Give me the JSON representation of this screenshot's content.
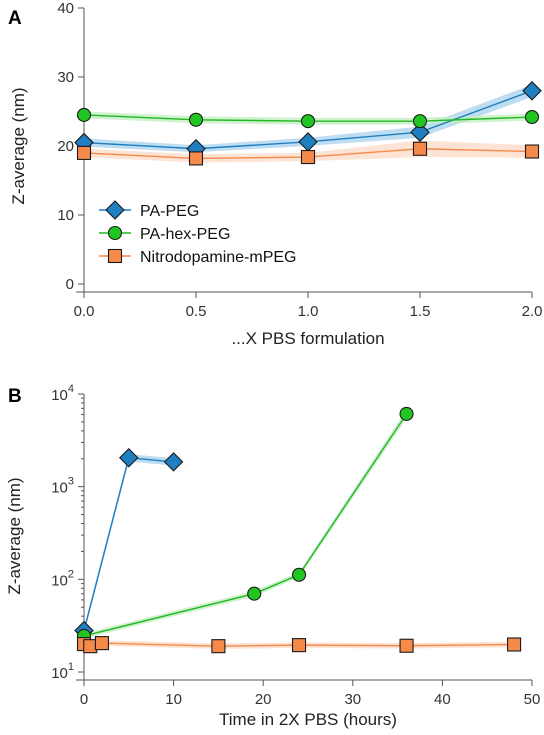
{
  "colors": {
    "PA-PEG": {
      "fill": "#1f7fc1",
      "line": "#1f7fc1",
      "band": "#a9d2ee"
    },
    "PA-hex-PEG": {
      "fill": "#22c622",
      "line": "#22b822",
      "band": "#bfeebf"
    },
    "Nitrodopamine-mPEG": {
      "fill": "#f58a4b",
      "line": "#f58a4b",
      "band": "#fcd9c4"
    },
    "axis": "#555555"
  },
  "chart_data": [
    {
      "panel_label": "A",
      "type": "line",
      "xlabel": "...X PBS formulation",
      "ylabel": "Z-average (nm)",
      "xlim": [
        0,
        2.0
      ],
      "ylim": [
        0,
        40
      ],
      "yscale": "linear",
      "xticks": [
        0.0,
        0.5,
        1.0,
        1.5,
        2.0
      ],
      "xtick_labels": [
        "0.0",
        "0.5",
        "1.0",
        "1.5",
        "2.0"
      ],
      "yticks": [
        0,
        10,
        20,
        30,
        40
      ],
      "ytick_labels": [
        "0",
        "10",
        "20",
        "30",
        "40"
      ],
      "grid": false,
      "legend": {
        "placement": "bottom-left",
        "entries": [
          "PA-PEG",
          "PA-hex-PEG",
          "Nitrodopamine-mPEG"
        ]
      },
      "series": [
        {
          "name": "PA-PEG",
          "marker": "diamond",
          "x": [
            0.0,
            0.5,
            1.0,
            1.5,
            2.0
          ],
          "values": [
            20.5,
            19.6,
            20.6,
            22.0,
            28.0
          ],
          "err": [
            0.6,
            0.5,
            0.6,
            0.8,
            0.9
          ]
        },
        {
          "name": "PA-hex-PEG",
          "marker": "circle",
          "x": [
            0.0,
            0.5,
            1.0,
            1.5,
            2.0
          ],
          "values": [
            24.5,
            23.8,
            23.6,
            23.6,
            24.2
          ],
          "err": [
            0.5,
            0.5,
            0.5,
            0.5,
            0.5
          ]
        },
        {
          "name": "Nitrodopamine-mPEG",
          "marker": "square",
          "x": [
            0.0,
            0.5,
            1.0,
            1.5,
            2.0
          ],
          "values": [
            19.0,
            18.2,
            18.4,
            19.6,
            19.2
          ],
          "err": [
            0.6,
            0.6,
            0.6,
            1.2,
            0.9
          ]
        }
      ]
    },
    {
      "panel_label": "B",
      "type": "line",
      "xlabel": "Time in 2X PBS (hours)",
      "ylabel": "Z-average (nm)",
      "xlim": [
        0,
        50
      ],
      "ylim": [
        10,
        10000
      ],
      "yscale": "log",
      "xticks": [
        0,
        10,
        20,
        30,
        40,
        50
      ],
      "xtick_labels": [
        "0",
        "10",
        "20",
        "30",
        "40",
        "50"
      ],
      "yticks": [
        10,
        100,
        1000,
        10000
      ],
      "ytick_bases": [
        "10",
        "10",
        "10",
        "10"
      ],
      "ytick_exponents": [
        "1",
        "2",
        "3",
        "4"
      ],
      "grid": false,
      "series": [
        {
          "name": "PA-PEG",
          "marker": "diamond",
          "x": [
            0,
            5,
            10
          ],
          "values": [
            28,
            2050,
            1850
          ],
          "err": [
            0.04,
            0.04,
            0.04
          ]
        },
        {
          "name": "PA-hex-PEG",
          "marker": "circle",
          "x": [
            0,
            19,
            24,
            36
          ],
          "values": [
            24.5,
            70,
            112,
            6100
          ],
          "err": [
            0.03,
            0.03,
            0.03,
            0.05
          ]
        },
        {
          "name": "Nitrodopamine-mPEG",
          "marker": "square",
          "x": [
            0,
            0.7,
            2,
            15,
            24,
            36,
            48
          ],
          "values": [
            20,
            19,
            20.5,
            19,
            19.5,
            19.2,
            19.8
          ],
          "err": [
            0.03,
            0.03,
            0.03,
            0.03,
            0.03,
            0.03,
            0.03
          ]
        }
      ]
    }
  ]
}
